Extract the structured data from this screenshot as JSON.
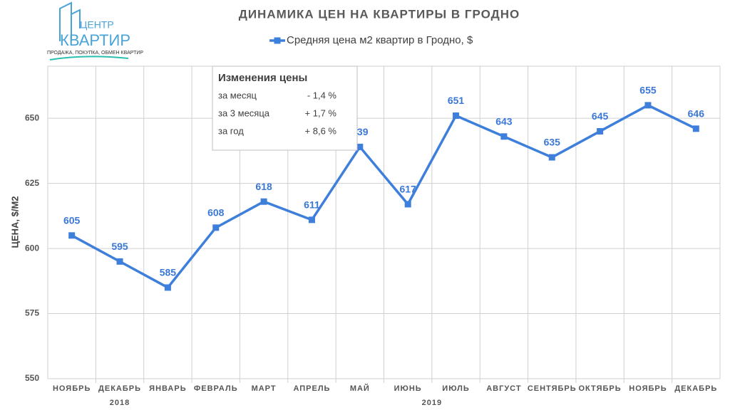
{
  "logo": {
    "title": "ЦЕНТР",
    "subtitle": "КВАРТИР",
    "tagline": "ПРОДАЖА, ПОКУПКА, ОБМЕН КВАРТИР"
  },
  "chart_data": {
    "type": "line",
    "title": "ДИНАМИКА ЦЕН НА КВАРТИРЫ В ГРОДНО",
    "y_label": "ЦЕНА, $/М2",
    "categories": [
      "НОЯБРЬ",
      "ДЕКАБРЬ",
      "ЯНВАРЬ",
      "ФЕВРАЛЬ",
      "МАРТ",
      "АПРЕЛЬ",
      "МАЙ",
      "ИЮНЬ",
      "ИЮЛЬ",
      "АВГУСТ",
      "СЕНТЯБРЬ",
      "ОКТЯБРЬ",
      "НОЯБРЬ",
      "ДЕКАБРЬ"
    ],
    "x_groups": [
      "2018",
      "2019"
    ],
    "series": [
      {
        "name": "Средняя цена м2 квартир в Гродно, $",
        "color": "#3f7fdc",
        "values": [
          605,
          595,
          585,
          608,
          618,
          611,
          639,
          617,
          651,
          643,
          635,
          645,
          655,
          646
        ]
      }
    ],
    "ylim": [
      550,
      670
    ],
    "yticks": [
      550,
      575,
      600,
      625,
      650
    ],
    "grid": true,
    "legend": "top",
    "annotation": {
      "title": "Изменения цены",
      "rows": [
        [
          "за месяц",
          "- 1,4 %"
        ],
        [
          "за 3 месяца",
          "+ 1,7 %"
        ],
        [
          "за год",
          "+ 8,6 %"
        ]
      ]
    }
  }
}
